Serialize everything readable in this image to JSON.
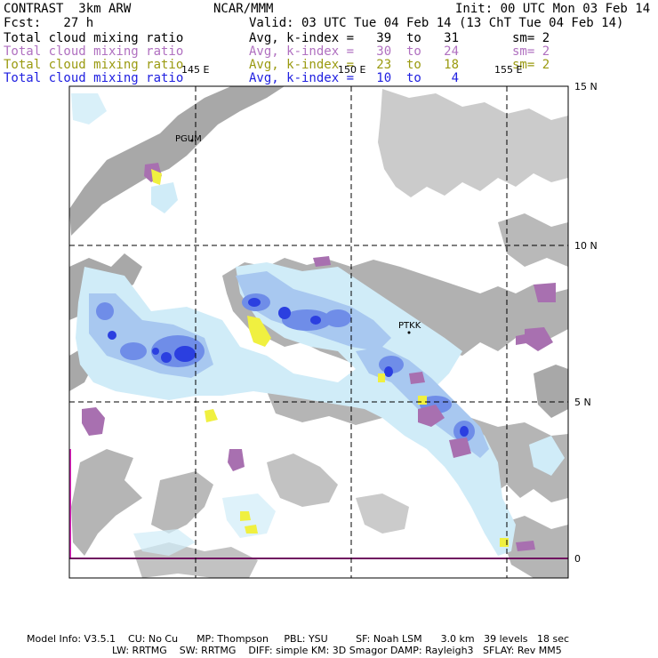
{
  "header": {
    "model": "CONTRAST  3km ARW",
    "org": "NCAR/MMM",
    "init": "Init: 00 UTC Mon 03 Feb 14",
    "fcst": "Fcst:   27 h",
    "valid": "Valid: 03 UTC Tue 04 Feb 14 (13 ChT Tue 04 Feb 14)"
  },
  "fields": [
    {
      "name": "Total cloud mixing ratio",
      "avg": "Avg, k-index =   39  to   31",
      "sm": "sm= 2",
      "color": "#000000"
    },
    {
      "name": "Total cloud mixing ratio",
      "avg": "Avg, k-index =   30  to   24",
      "sm": "sm= 2",
      "color": "#b070c0"
    },
    {
      "name": "Total cloud mixing ratio",
      "avg": "Avg, k-index =   23  to   18",
      "sm": "sm= 2",
      "color": "#9a9a10"
    },
    {
      "name": "Total cloud mixing ratio",
      "avg": "Avg, k-index =   10  to    4",
      "sm": "",
      "color": "#2020e0"
    }
  ],
  "map": {
    "lon_labels": [
      "145 E",
      "150 E",
      "155 E"
    ],
    "lat_labels": [
      "15 N",
      "10 N",
      "5 N",
      "0"
    ],
    "stations": [
      "PGUM",
      "PTKK"
    ],
    "colors": {
      "land": "#a8a8a8",
      "cloud_light": "#d0ecf8",
      "cloud_mid": "#a8c8f0",
      "cloud_strong": "#6f8de8",
      "cloud_core": "#2b3fe0",
      "purple": "#a870b0",
      "yellow": "#f0f040",
      "equator": "#e020c0"
    }
  },
  "footer": {
    "line1": "Model Info: V3.5.1    CU: No Cu      MP: Thompson     PBL: YSU         SF: Noah LSM      3.0 km   39 levels   18 sec",
    "line2": "LW: RRTMG    SW: RRTMG    DIFF: simple KM: 3D Smagor DAMP: Rayleigh3   SFLAY: Rev MM5"
  }
}
